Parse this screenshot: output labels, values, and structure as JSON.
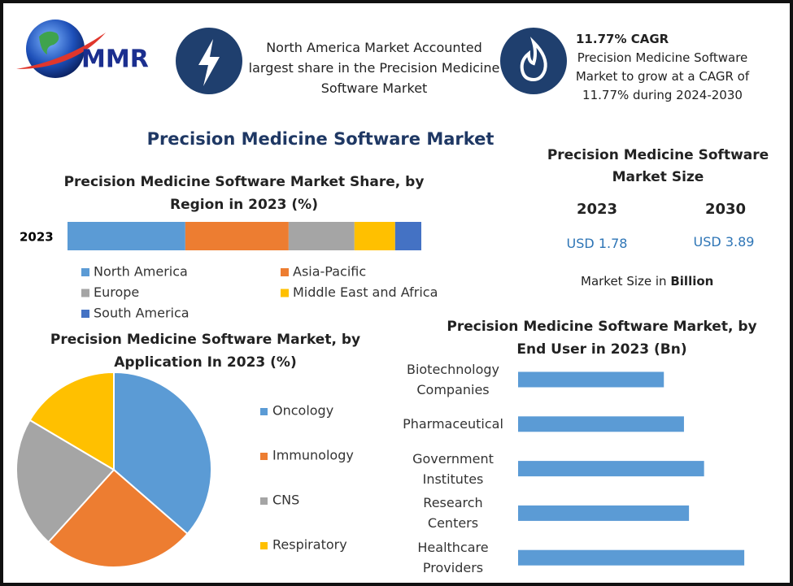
{
  "logo": "MMR",
  "highlight": "North America Market Accounted largest share in the Precision Medicine Software Market",
  "cagr": {
    "title": "11.77% CAGR",
    "text": "Precision Medicine Software Market to grow at a CAGR of 11.77% during 2024-2030"
  },
  "main_title": "Precision Medicine Software Market",
  "market_size": {
    "title": "Precision Medicine Software Market Size",
    "years": [
      "2023",
      "2030"
    ],
    "values": [
      "USD 1.78",
      "USD 3.89"
    ],
    "note": "Market Size in",
    "note_unit": "Billion"
  },
  "chart_data": [
    {
      "type": "stacked_barh",
      "title": "Precision Medicine Software Market Share, by Region in 2023 (%)",
      "categories": [
        "2023"
      ],
      "xlim": [
        0,
        100
      ],
      "series": [
        {
          "name": "North America",
          "color": "#5b9bd5",
          "values": [
            33.3
          ]
        },
        {
          "name": "Asia-Pacific",
          "color": "#ed7d31",
          "values": [
            29.2
          ]
        },
        {
          "name": "Europe",
          "color": "#a5a5a5",
          "values": [
            18.6
          ]
        },
        {
          "name": "Middle East and Africa",
          "color": "#ffc000",
          "values": [
            11.5
          ]
        },
        {
          "name": "South America",
          "color": "#4472c4",
          "values": [
            7.4
          ]
        }
      ]
    },
    {
      "type": "pie",
      "title": "Precision Medicine Software Market, by Application In 2023 (%)",
      "categories": [
        "Oncology",
        "Immunology",
        "CNS",
        "Respiratory"
      ],
      "values": [
        36.4,
        25.3,
        21.8,
        16.5
      ],
      "colors": [
        "#5b9bd5",
        "#ed7d31",
        "#a5a5a5",
        "#ffc000"
      ]
    },
    {
      "type": "barh",
      "title": "Precision Medicine Software Market, by End User in 2023 (Bn)",
      "categories": [
        "Biotechnology Companies",
        "Pharmaceutical",
        "Government Institutes",
        "Research Centers",
        "Healthcare Providers"
      ],
      "values": [
        0.29,
        0.33,
        0.37,
        0.34,
        0.45
      ],
      "xlim": [
        0,
        0.5
      ],
      "color": "#5b9bd5"
    }
  ]
}
